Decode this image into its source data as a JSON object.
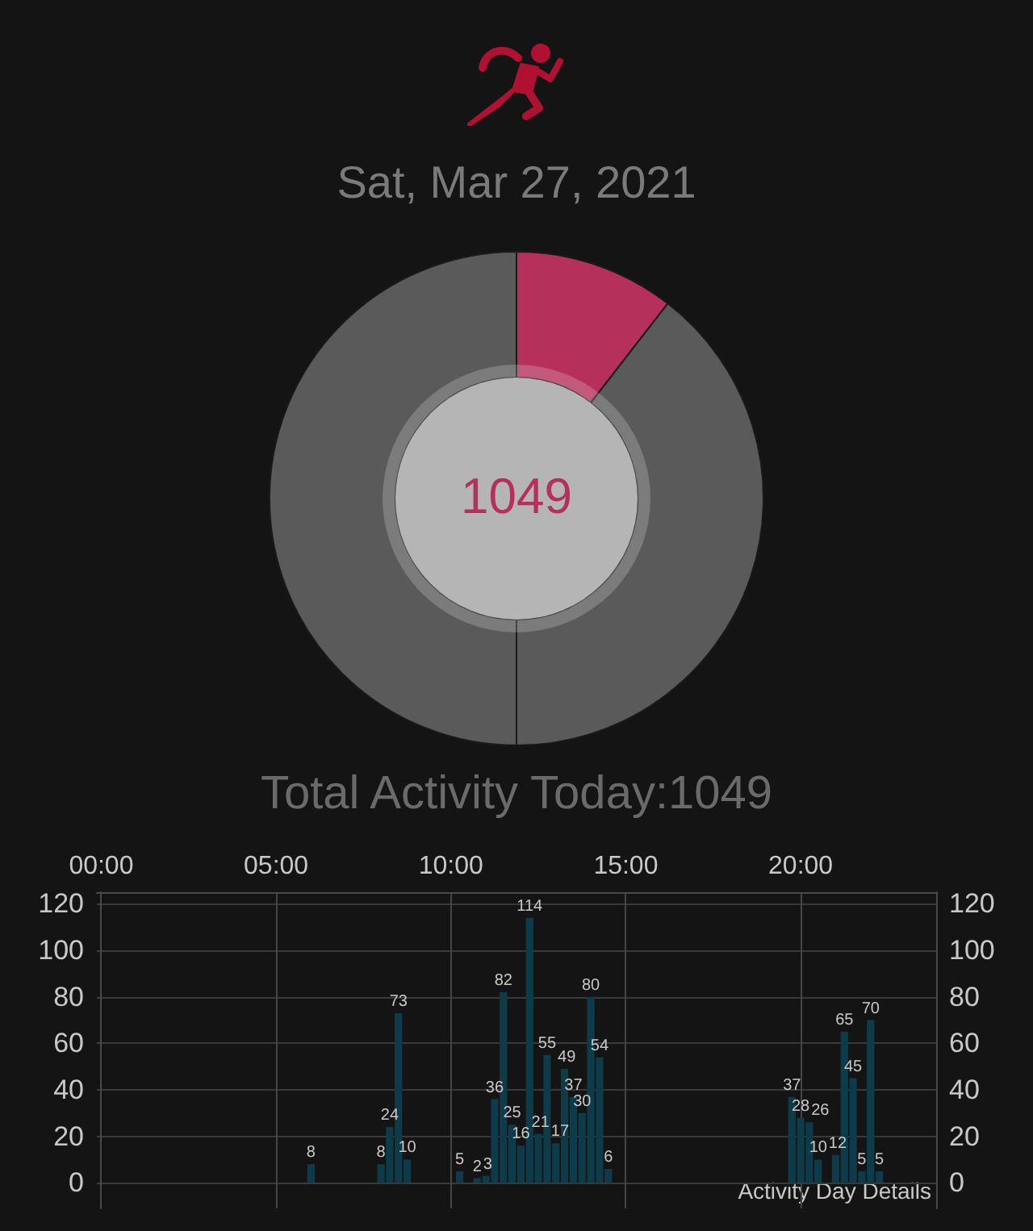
{
  "chart_data": [
    {
      "type": "donut",
      "title": "Sat, Mar 27, 2021",
      "categories": [
        null,
        null,
        null
      ],
      "values": [
        10.5,
        39.5,
        50
      ],
      "colors": [
        "#b5305a",
        "#5a5a5a",
        "#5a5a5a"
      ],
      "annotations": [
        "1049",
        "Total Activity Today:1049"
      ]
    },
    {
      "type": "bar",
      "x": [
        6,
        8,
        8.25,
        8.5,
        8.75,
        10.25,
        10.75,
        11,
        11.25,
        11.5,
        11.75,
        12,
        12.25,
        12.5,
        12.75,
        13,
        13.25,
        13.5,
        13.75,
        14,
        14.25,
        14.5,
        19.75,
        20,
        20.25,
        20.5,
        21,
        21.25,
        21.5,
        21.75,
        22,
        22.25
      ],
      "values": [
        8,
        8,
        24,
        73,
        10,
        5,
        2,
        3,
        36,
        82,
        25,
        16,
        114,
        21,
        55,
        17,
        49,
        37,
        30,
        80,
        54,
        6,
        37,
        28,
        26,
        10,
        12,
        65,
        45,
        5,
        70,
        5
      ],
      "color": "#0d3b4a",
      "data_labels": true,
      "grid": true,
      "xlim": [
        -0.125,
        23.875
      ],
      "xticks": [
        {
          "value": 0,
          "label": "00:00"
        },
        {
          "value": 5,
          "label": "05:00"
        },
        {
          "value": 10,
          "label": "10:00"
        },
        {
          "value": 15,
          "label": "15:00"
        },
        {
          "value": 20,
          "label": "20:00"
        }
      ],
      "ylim": [
        -11,
        125
      ],
      "yticks": [
        0,
        20,
        40,
        60,
        80,
        100,
        120
      ],
      "y2lim": [
        -11,
        125
      ],
      "y2ticks": [
        0,
        20,
        40,
        60,
        80,
        100,
        120
      ],
      "annotations": [
        "Activity Day Details"
      ]
    }
  ]
}
